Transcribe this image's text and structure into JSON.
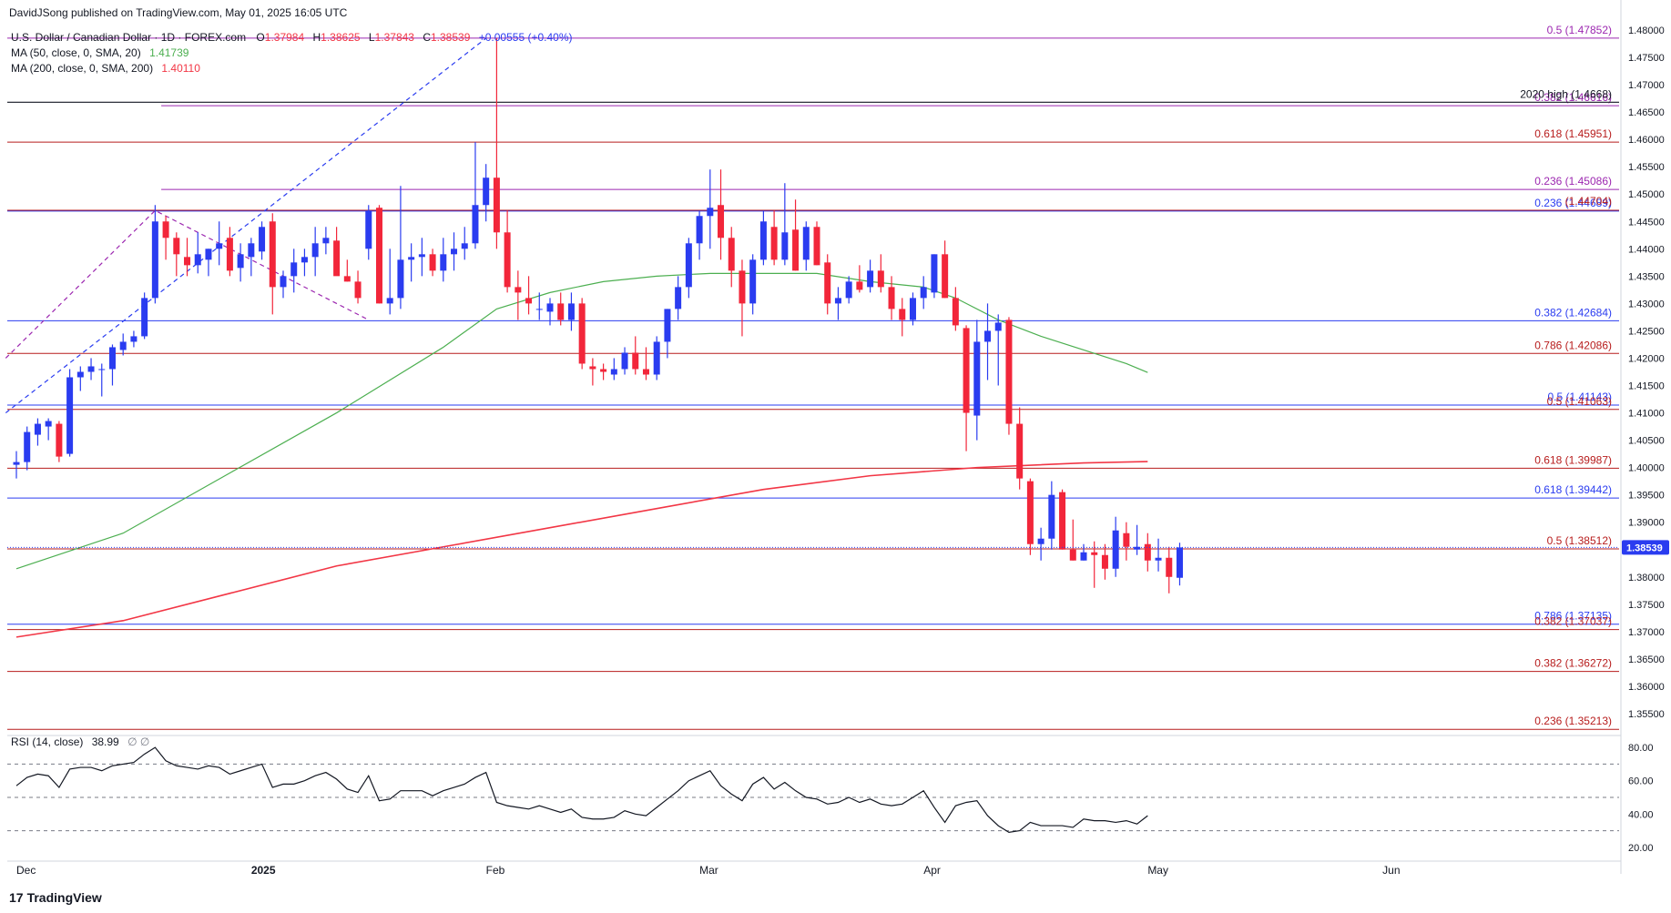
{
  "header": {
    "publisher": "DavidJSong published on TradingView.com, May 01, 2025 16:05 UTC",
    "symbol": "U.S. Dollar / Canadian Dollar · 1D · FOREX.com",
    "ohlc": {
      "o_label": "O",
      "o": "1.37984",
      "h_label": "H",
      "h": "1.38625",
      "l_label": "L",
      "l": "1.37843",
      "c_label": "C",
      "c": "1.38539",
      "change": "+0.00555 (+0.40%)"
    },
    "ma50_label": "MA (50, close, 0, SMA, 20)",
    "ma50_value": "1.41739",
    "ma200_label": "MA (200, close, 0, SMA, 200)",
    "ma200_value": "1.40110",
    "rsi_label": "RSI (14, close)",
    "rsi_value": "38.99",
    "rsi_extra": "∅ ∅"
  },
  "footer": {
    "logo_text": "TradingView"
  },
  "colors": {
    "up": "#2a3cf0",
    "down": "#f2263a",
    "ma50": "#4caf50",
    "ma200": "#f23645",
    "fib_blue": "#2a3cf0",
    "fib_red": "#b71c1c",
    "fib_purple": "#9c27b0",
    "rsi": "#131722",
    "price_tag": "#2a3cf0"
  },
  "chart_data": {
    "type": "candlestick",
    "title": "U.S. Dollar / Canadian Dollar · 1D · FOREX.com",
    "ylim": [
      1.3515,
      1.4805
    ],
    "y_ticks": [
      "1.48000",
      "1.47500",
      "1.47000",
      "1.46500",
      "1.46000",
      "1.45500",
      "1.45000",
      "1.44500",
      "1.44000",
      "1.43500",
      "1.43000",
      "1.42500",
      "1.42000",
      "1.41500",
      "1.41000",
      "1.40500",
      "1.40000",
      "1.39500",
      "1.39000",
      "1.38500",
      "1.38000",
      "1.37500",
      "1.37000",
      "1.36500",
      "1.36000",
      "1.35500"
    ],
    "x_labels": [
      {
        "label": "Dec",
        "index": 0
      },
      {
        "label": "2025",
        "index": 22
      },
      {
        "label": "Feb",
        "index": 44
      },
      {
        "label": "Mar",
        "index": 64
      },
      {
        "label": "Apr",
        "index": 85
      },
      {
        "label": "May",
        "index": 106
      },
      {
        "label": "Jun",
        "index": 128
      }
    ],
    "last_price": "1.38539",
    "candles": [
      [
        1.4005,
        1.403,
        1.398,
        1.401
      ],
      [
        1.401,
        1.4075,
        1.3995,
        1.4065
      ],
      [
        1.406,
        1.409,
        1.404,
        1.408
      ],
      [
        1.4075,
        1.409,
        1.405,
        1.4085
      ],
      [
        1.408,
        1.4085,
        1.401,
        1.402
      ],
      [
        1.4025,
        1.418,
        1.402,
        1.4165
      ],
      [
        1.4165,
        1.4185,
        1.414,
        1.4175
      ],
      [
        1.4175,
        1.42,
        1.416,
        1.4185
      ],
      [
        1.418,
        1.419,
        1.413,
        1.418
      ],
      [
        1.418,
        1.4225,
        1.415,
        1.422
      ],
      [
        1.4215,
        1.4245,
        1.4205,
        1.423
      ],
      [
        1.423,
        1.425,
        1.422,
        1.424
      ],
      [
        1.424,
        1.432,
        1.4235,
        1.431
      ],
      [
        1.431,
        1.448,
        1.43,
        1.445
      ],
      [
        1.445,
        1.446,
        1.438,
        1.442
      ],
      [
        1.442,
        1.443,
        1.435,
        1.439
      ],
      [
        1.4385,
        1.442,
        1.435,
        1.437
      ],
      [
        1.437,
        1.443,
        1.4355,
        1.439
      ],
      [
        1.438,
        1.44,
        1.435,
        1.44
      ],
      [
        1.44,
        1.445,
        1.437,
        1.441
      ],
      [
        1.442,
        1.444,
        1.435,
        1.436
      ],
      [
        1.4365,
        1.441,
        1.434,
        1.439
      ],
      [
        1.4385,
        1.442,
        1.435,
        1.441
      ],
      [
        1.4395,
        1.445,
        1.438,
        1.444
      ],
      [
        1.445,
        1.4465,
        1.428,
        1.433
      ],
      [
        1.433,
        1.436,
        1.431,
        1.435
      ],
      [
        1.435,
        1.44,
        1.432,
        1.4375
      ],
      [
        1.4375,
        1.44,
        1.435,
        1.4385
      ],
      [
        1.4385,
        1.444,
        1.435,
        1.441
      ],
      [
        1.441,
        1.444,
        1.439,
        1.442
      ],
      [
        1.4415,
        1.444,
        1.436,
        1.435
      ],
      [
        1.435,
        1.438,
        1.434,
        1.434
      ],
      [
        1.434,
        1.436,
        1.43,
        1.431
      ],
      [
        1.44,
        1.448,
        1.438,
        1.447
      ],
      [
        1.4475,
        1.448,
        1.43,
        1.43
      ],
      [
        1.43,
        1.44,
        1.428,
        1.431
      ],
      [
        1.431,
        1.4515,
        1.429,
        1.438
      ],
      [
        1.438,
        1.441,
        1.434,
        1.4385
      ],
      [
        1.4385,
        1.442,
        1.435,
        1.439
      ],
      [
        1.439,
        1.44,
        1.435,
        1.436
      ],
      [
        1.436,
        1.442,
        1.434,
        1.439
      ],
      [
        1.439,
        1.443,
        1.436,
        1.44
      ],
      [
        1.44,
        1.444,
        1.438,
        1.441
      ],
      [
        1.441,
        1.4595,
        1.44,
        1.448
      ],
      [
        1.448,
        1.4555,
        1.445,
        1.453
      ],
      [
        1.453,
        1.4785,
        1.44,
        1.443
      ],
      [
        1.443,
        1.447,
        1.432,
        1.433
      ],
      [
        1.433,
        1.436,
        1.427,
        1.432
      ],
      [
        1.431,
        1.435,
        1.428,
        1.43
      ],
      [
        1.429,
        1.432,
        1.427,
        1.429
      ],
      [
        1.4285,
        1.431,
        1.426,
        1.43
      ],
      [
        1.43,
        1.432,
        1.426,
        1.427
      ],
      [
        1.427,
        1.432,
        1.425,
        1.43
      ],
      [
        1.43,
        1.431,
        1.418,
        1.419
      ],
      [
        1.4185,
        1.42,
        1.415,
        1.418
      ],
      [
        1.418,
        1.419,
        1.416,
        1.4175
      ],
      [
        1.417,
        1.42,
        1.416,
        1.418
      ],
      [
        1.418,
        1.422,
        1.417,
        1.421
      ],
      [
        1.421,
        1.424,
        1.417,
        1.418
      ],
      [
        1.418,
        1.422,
        1.416,
        1.417
      ],
      [
        1.417,
        1.424,
        1.416,
        1.423
      ],
      [
        1.423,
        1.429,
        1.42,
        1.429
      ],
      [
        1.429,
        1.435,
        1.427,
        1.433
      ],
      [
        1.433,
        1.442,
        1.431,
        1.441
      ],
      [
        1.441,
        1.447,
        1.438,
        1.446
      ],
      [
        1.446,
        1.4545,
        1.44,
        1.4475
      ],
      [
        1.448,
        1.4545,
        1.438,
        1.442
      ],
      [
        1.442,
        1.444,
        1.433,
        1.436
      ],
      [
        1.436,
        1.438,
        1.424,
        1.43
      ],
      [
        1.43,
        1.439,
        1.428,
        1.438
      ],
      [
        1.438,
        1.447,
        1.437,
        1.445
      ],
      [
        1.444,
        1.447,
        1.437,
        1.438
      ],
      [
        1.438,
        1.452,
        1.437,
        1.443
      ],
      [
        1.4435,
        1.449,
        1.436,
        1.436
      ],
      [
        1.438,
        1.445,
        1.436,
        1.444
      ],
      [
        1.444,
        1.445,
        1.437,
        1.437
      ],
      [
        1.4375,
        1.439,
        1.428,
        1.43
      ],
      [
        1.43,
        1.433,
        1.427,
        1.431
      ],
      [
        1.431,
        1.435,
        1.43,
        1.434
      ],
      [
        1.434,
        1.437,
        1.432,
        1.4325
      ],
      [
        1.433,
        1.438,
        1.432,
        1.436
      ],
      [
        1.436,
        1.439,
        1.432,
        1.433
      ],
      [
        1.433,
        1.435,
        1.427,
        1.429
      ],
      [
        1.429,
        1.431,
        1.424,
        1.427
      ],
      [
        1.427,
        1.432,
        1.426,
        1.431
      ],
      [
        1.431,
        1.435,
        1.429,
        1.433
      ],
      [
        1.432,
        1.439,
        1.431,
        1.439
      ],
      [
        1.439,
        1.4415,
        1.431,
        1.431
      ],
      [
        1.431,
        1.433,
        1.425,
        1.426
      ],
      [
        1.4255,
        1.426,
        1.403,
        1.41
      ],
      [
        1.4095,
        1.427,
        1.405,
        1.423
      ],
      [
        1.423,
        1.43,
        1.416,
        1.425
      ],
      [
        1.425,
        1.428,
        1.415,
        1.4265
      ],
      [
        1.427,
        1.4275,
        1.406,
        1.408
      ],
      [
        1.408,
        1.411,
        1.396,
        1.398
      ],
      [
        1.3975,
        1.398,
        1.384,
        1.386
      ],
      [
        1.386,
        1.389,
        1.383,
        1.387
      ],
      [
        1.387,
        1.3975,
        1.385,
        1.395
      ],
      [
        1.3955,
        1.396,
        1.385,
        1.385
      ],
      [
        1.385,
        1.3905,
        1.383,
        1.383
      ],
      [
        1.383,
        1.386,
        1.383,
        1.3845
      ],
      [
        1.3845,
        1.3865,
        1.378,
        1.384
      ],
      [
        1.384,
        1.386,
        1.3795,
        1.3815
      ],
      [
        1.3815,
        1.391,
        1.38,
        1.3885
      ],
      [
        1.388,
        1.39,
        1.383,
        1.3855
      ],
      [
        1.385,
        1.3895,
        1.384,
        1.3855
      ],
      [
        1.386,
        1.388,
        1.381,
        1.383
      ],
      [
        1.383,
        1.387,
        1.381,
        1.3835
      ],
      [
        1.3835,
        1.3855,
        1.377,
        1.38
      ],
      [
        1.37984,
        1.38625,
        1.37843,
        1.38539
      ]
    ],
    "ma50": [
      [
        0,
        1.3815
      ],
      [
        10,
        1.388
      ],
      [
        20,
        1.399
      ],
      [
        30,
        1.41
      ],
      [
        40,
        1.422
      ],
      [
        45,
        1.429
      ],
      [
        50,
        1.432
      ],
      [
        55,
        1.434
      ],
      [
        60,
        1.435
      ],
      [
        65,
        1.4355
      ],
      [
        70,
        1.4355
      ],
      [
        75,
        1.4355
      ],
      [
        80,
        1.434
      ],
      [
        85,
        1.433
      ],
      [
        88,
        1.431
      ],
      [
        92,
        1.427
      ],
      [
        96,
        1.424
      ],
      [
        100,
        1.4215
      ],
      [
        104,
        1.419
      ],
      [
        106,
        1.41739
      ]
    ],
    "ma200": [
      [
        0,
        1.369
      ],
      [
        10,
        1.372
      ],
      [
        20,
        1.377
      ],
      [
        30,
        1.382
      ],
      [
        40,
        1.3855
      ],
      [
        50,
        1.389
      ],
      [
        60,
        1.3925
      ],
      [
        70,
        1.396
      ],
      [
        80,
        1.3985
      ],
      [
        90,
        1.4
      ],
      [
        100,
        1.40085
      ],
      [
        106,
        1.4011
      ]
    ],
    "fib_levels": [
      {
        "label": "0.5 (1.47852)",
        "value": 1.47852,
        "color": "purple",
        "from_index": 0
      },
      {
        "label": "0.382 (1.46616)",
        "value": 1.46616,
        "color": "purple",
        "from_index": 14
      },
      {
        "label": "2020 high (1.4668)",
        "value": 1.4668,
        "color": "black",
        "from_index": 0
      },
      {
        "label": "0.618 (1.45951)",
        "value": 1.45951,
        "color": "red",
        "from_index": 0
      },
      {
        "label": "0.236 (1.45086)",
        "value": 1.45086,
        "color": "purple",
        "from_index": 14
      },
      {
        "label": "0.236 (1.44689)",
        "value": 1.44689,
        "color": "blue",
        "from_index": 0
      },
      {
        "label": "(1.44704)",
        "value": 1.44704,
        "color": "red",
        "from_index": 0
      },
      {
        "label": "0.382 (1.42684)",
        "value": 1.42684,
        "color": "blue",
        "from_index": 0
      },
      {
        "label": "0.786 (1.42086)",
        "value": 1.42086,
        "color": "red",
        "from_index": 0
      },
      {
        "label": "0.5 (1.41143)",
        "value": 1.41143,
        "color": "blue",
        "from_index": 0
      },
      {
        "label": "0.5 (1.41063)",
        "value": 1.41063,
        "color": "red",
        "from_index": 0
      },
      {
        "label": "0.618 (1.39987)",
        "value": 1.39987,
        "color": "red",
        "from_index": 0
      },
      {
        "label": "0.618 (1.39442)",
        "value": 1.39442,
        "color": "blue",
        "from_index": 0
      },
      {
        "label": "0.5 (1.38512)",
        "value": 1.38512,
        "color": "red",
        "from_index": 0
      },
      {
        "label": "0.786 (1.37135)",
        "value": 1.37135,
        "color": "blue",
        "from_index": 0
      },
      {
        "label": "0.382 (1.37037)",
        "value": 1.37037,
        "color": "red",
        "from_index": 0
      },
      {
        "label": "0.382 (1.36272)",
        "value": 1.36272,
        "color": "red",
        "from_index": 0
      },
      {
        "label": "0.236 (1.35213)",
        "value": 1.35213,
        "color": "red",
        "from_index": 0
      }
    ],
    "fib_drawing": {
      "trend_line": [
        [
          -1,
          1.41
        ],
        [
          44,
          1.4785
        ]
      ],
      "zigzag": [
        [
          -1,
          1.42
        ],
        [
          13,
          1.447
        ],
        [
          33,
          1.427
        ]
      ]
    },
    "rsi": {
      "ylim": [
        15,
        85
      ],
      "ticks": [
        "80.00",
        "60.00",
        "40.00",
        "20.00"
      ],
      "levels": [
        70,
        50,
        30
      ],
      "values": [
        57,
        62,
        64,
        63,
        56,
        67,
        68,
        68,
        66,
        69,
        70,
        71,
        76,
        80,
        72,
        69,
        68,
        67,
        69,
        68,
        64,
        66,
        68,
        70,
        56,
        58,
        58,
        60,
        63,
        65,
        61,
        55,
        53,
        63,
        48,
        49,
        54,
        54,
        54,
        51,
        54,
        56,
        58,
        62,
        65,
        47,
        45,
        44,
        43,
        45,
        43,
        41,
        43,
        38,
        37,
        37,
        38,
        42,
        40,
        39,
        44,
        49,
        54,
        60,
        63,
        66,
        57,
        52,
        48,
        58,
        62,
        55,
        59,
        54,
        50,
        49,
        46,
        47,
        50,
        47,
        49,
        46,
        45,
        46,
        50,
        54,
        44,
        35,
        45,
        47,
        48,
        39,
        33,
        29,
        30,
        35,
        33,
        33,
        33,
        32,
        37,
        36,
        36,
        35,
        36,
        34,
        38.99
      ]
    }
  }
}
